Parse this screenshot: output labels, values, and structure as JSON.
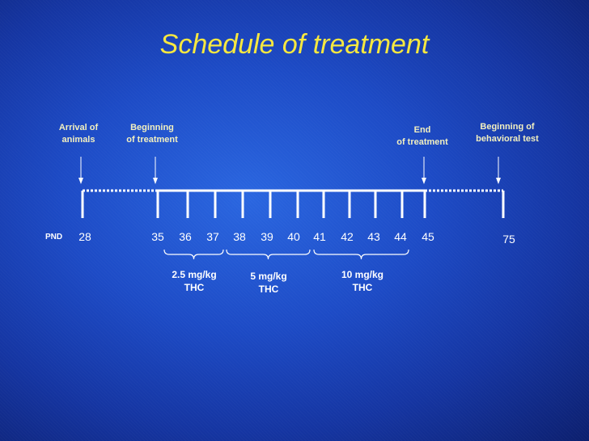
{
  "title": "Schedule of treatment",
  "pnd_label": "PND",
  "events": [
    {
      "label": "Arrival of\nanimals",
      "day": 28
    },
    {
      "label": "Beginning\nof treatment",
      "day": 35
    },
    {
      "label": "End\nof treatment",
      "day": 45
    },
    {
      "label": "Beginning of\nbehavioral test",
      "day": 75
    }
  ],
  "days": [
    28,
    35,
    36,
    37,
    38,
    39,
    40,
    41,
    42,
    43,
    44,
    45,
    75
  ],
  "doses": [
    {
      "label": "2.5 mg/kg\nTHC",
      "days": [
        35,
        37
      ]
    },
    {
      "label": "5 mg/kg\nTHC",
      "days": [
        38,
        40
      ]
    },
    {
      "label": "10 mg/kg\nTHC",
      "days": [
        41,
        44
      ]
    }
  ],
  "colors": {
    "title": "#f7e840",
    "event_label": "#f2f0c0",
    "text": "#ffffff",
    "line": "#ffffff"
  }
}
